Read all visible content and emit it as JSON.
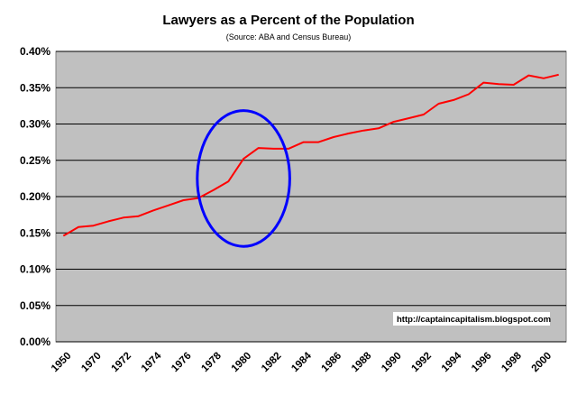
{
  "chart_data": {
    "type": "line",
    "title": "Lawyers as a Percent of the Population",
    "subtitle": "(Source: ABA and Census Bureau)",
    "xlabel": "",
    "ylabel": "",
    "ylim": [
      0,
      0.4
    ],
    "y_ticks": [
      "0.00%",
      "0.05%",
      "0.10%",
      "0.15%",
      "0.20%",
      "0.25%",
      "0.30%",
      "0.35%",
      "0.40%"
    ],
    "x_tick_labels": [
      "1950",
      "1970",
      "1972",
      "1974",
      "1976",
      "1978",
      "1980",
      "1982",
      "1984",
      "1986",
      "1988",
      "1990",
      "1992",
      "1994",
      "1996",
      "1998",
      "2000"
    ],
    "grid": true,
    "background": "#c0c0c0",
    "series": [
      {
        "color": "#ff0000",
        "values": [
          0.146,
          0.158,
          0.16,
          0.166,
          0.171,
          0.173,
          0.181,
          0.188,
          0.195,
          0.198,
          0.209,
          0.221,
          0.252,
          0.267,
          0.266,
          0.266,
          0.275,
          0.275,
          0.282,
          0.287,
          0.291,
          0.294,
          0.303,
          0.308,
          0.313,
          0.328,
          0.333,
          0.341,
          0.357,
          0.355,
          0.354,
          0.367,
          0.363,
          0.368
        ]
      }
    ],
    "annotations": {
      "ellipse_color": "#0000ff",
      "highlight_period": [
        "1978",
        "1982"
      ],
      "source_url": "http://captaincapitalism.blogspot.com"
    }
  }
}
